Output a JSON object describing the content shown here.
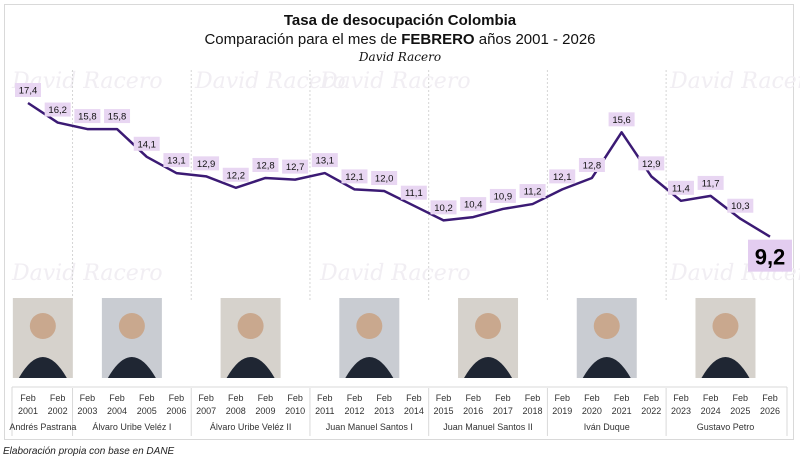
{
  "chart_data": {
    "type": "line",
    "title": "Tasa de desocupación Colombia",
    "subtitle_prefix": "Comparación para el mes de ",
    "subtitle_bold": "FEBRERO",
    "subtitle_suffix": " años 2001 - 2026",
    "signature": "David Racero",
    "watermark": "David Racero",
    "categories": [
      "2001",
      "2002",
      "2003",
      "2004",
      "2005",
      "2006",
      "2007",
      "2008",
      "2009",
      "2010",
      "2011",
      "2012",
      "2013",
      "2014",
      "2015",
      "2016",
      "2017",
      "2018",
      "2019",
      "2020",
      "2021",
      "2022",
      "2023",
      "2024",
      "2025",
      "2026"
    ],
    "month_label": "Feb",
    "values": [
      17.4,
      16.2,
      15.8,
      15.8,
      14.1,
      13.1,
      12.9,
      12.2,
      12.8,
      12.7,
      13.1,
      12.1,
      12.0,
      11.1,
      10.2,
      10.4,
      10.9,
      11.2,
      12.1,
      12.8,
      15.6,
      12.9,
      11.4,
      11.7,
      10.3,
      9.2
    ],
    "data_labels": [
      "17,4",
      "16,2",
      "15,8",
      "15,8",
      "14,1",
      "13,1",
      "12,9",
      "12,2",
      "12,8",
      "12,7",
      "13,1",
      "12,1",
      "12,0",
      "11,1",
      "10,2",
      "10,4",
      "10,9",
      "11,2",
      "12,1",
      "12,8",
      "15,6",
      "12,9",
      "11,4",
      "11,7",
      "10,3",
      "9,2"
    ],
    "groups": [
      {
        "label": "Andrés Pastrana",
        "start": 0,
        "end": 1
      },
      {
        "label": "Álvaro Uribe Veléz I",
        "start": 2,
        "end": 5
      },
      {
        "label": "Álvaro Uribe Veléz II",
        "start": 6,
        "end": 9
      },
      {
        "label": "Juan Manuel Santos I",
        "start": 10,
        "end": 13
      },
      {
        "label": "Juan Manuel Santos II",
        "start": 14,
        "end": 17
      },
      {
        "label": "Iván Duque",
        "start": 18,
        "end": 21
      },
      {
        "label": "Gustavo Petro",
        "start": 22,
        "end": 25
      }
    ],
    "colors": {
      "line": "#3b1a74",
      "label_bg": "#e8d6f2",
      "last_label_bg": "#e3cdf0"
    }
  },
  "footer": {
    "note": "Elaboración propia con base en DANE"
  }
}
